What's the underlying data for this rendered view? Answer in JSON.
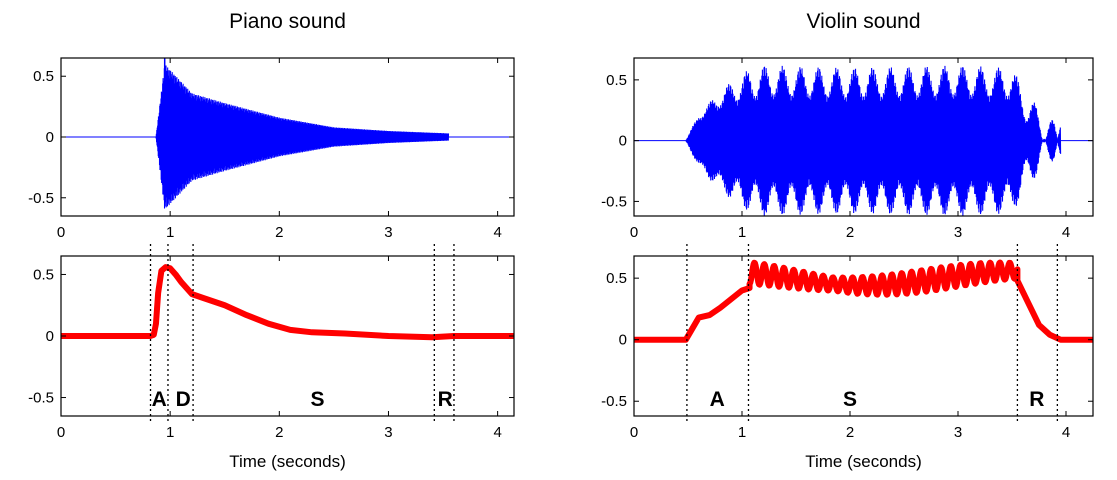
{
  "colors": {
    "waveform": "#0000ff",
    "envelope": "#ff0000",
    "axes": "#000000"
  },
  "chart_data": [
    {
      "id": "piano_wave",
      "type": "line",
      "title": "Piano sound",
      "xlabel": "",
      "ylabel": "",
      "xlim": [
        0,
        4.15
      ],
      "ylim": [
        -0.65,
        0.65
      ],
      "xticks": [
        0,
        1,
        2,
        3,
        4
      ],
      "yticks": [
        0.5,
        0,
        -0.5
      ],
      "grid": false,
      "series": [
        {
          "kind": "waveform",
          "onset": 0.87,
          "offset": 3.55,
          "peak_time": 0.95,
          "peak": 0.6,
          "envelope": {
            "x": [
              0.87,
              0.95,
              1.2,
              1.5,
              2.0,
              2.5,
              3.0,
              3.55
            ],
            "y": [
              0.0,
              0.6,
              0.36,
              0.28,
              0.16,
              0.08,
              0.05,
              0.03
            ]
          }
        }
      ]
    },
    {
      "id": "piano_env",
      "type": "line",
      "title": "",
      "xlabel": "Time (seconds)",
      "ylabel": "",
      "xlim": [
        0,
        4.15
      ],
      "ylim": [
        -0.65,
        0.65
      ],
      "xticks": [
        0,
        1,
        2,
        3,
        4
      ],
      "yticks": [
        0.5,
        0,
        -0.5
      ],
      "grid": false,
      "series": [
        {
          "kind": "envelope",
          "x": [
            0,
            0.82,
            0.85,
            0.87,
            0.89,
            0.92,
            0.96,
            1.0,
            1.05,
            1.1,
            1.15,
            1.2,
            1.3,
            1.5,
            1.7,
            1.9,
            2.1,
            2.3,
            2.6,
            3.0,
            3.4,
            3.6,
            4.15
          ],
          "y": [
            0,
            0,
            0.01,
            0.1,
            0.35,
            0.53,
            0.56,
            0.55,
            0.5,
            0.44,
            0.39,
            0.34,
            0.31,
            0.25,
            0.17,
            0.1,
            0.05,
            0.03,
            0.02,
            0.0,
            -0.01,
            0.0,
            0.0
          ]
        }
      ],
      "markers": [
        0.82,
        0.98,
        1.21,
        3.42,
        3.6
      ],
      "phases": [
        {
          "label": "A",
          "x": 0.9
        },
        {
          "label": "D",
          "x": 1.12
        },
        {
          "label": "S",
          "x": 2.35
        },
        {
          "label": "R",
          "x": 3.52
        }
      ]
    },
    {
      "id": "violin_wave",
      "type": "line",
      "title": "Violin sound",
      "xlabel": "",
      "ylabel": "",
      "xlim": [
        0,
        4.25
      ],
      "ylim": [
        -0.62,
        0.68
      ],
      "xticks": [
        0,
        1,
        2,
        3,
        4
      ],
      "yticks": [
        0.5,
        0,
        -0.5
      ],
      "grid": false,
      "series": [
        {
          "kind": "waveform",
          "onset": 0.48,
          "offset": 3.95,
          "envelope": {
            "x": [
              0.48,
              0.6,
              0.8,
              1.0,
              1.2,
              2.0,
              3.0,
              3.5,
              3.65,
              3.8,
              3.95
            ],
            "y": [
              0.0,
              0.2,
              0.35,
              0.45,
              0.5,
              0.48,
              0.5,
              0.48,
              0.25,
              0.1,
              0.0
            ]
          },
          "ripple_amplitude": 0.12,
          "ripple_frequency": 6
        }
      ]
    },
    {
      "id": "violin_env",
      "type": "line",
      "title": "",
      "xlabel": "Time (seconds)",
      "ylabel": "",
      "xlim": [
        0,
        4.25
      ],
      "ylim": [
        -0.62,
        0.68
      ],
      "xticks": [
        0,
        1,
        2,
        3,
        4
      ],
      "yticks": [
        0.5,
        0,
        -0.5
      ],
      "grid": false,
      "series": [
        {
          "kind": "envelope",
          "x": [
            0,
            0.48,
            0.52,
            0.6,
            0.7,
            0.8,
            0.9,
            1.0,
            1.07
          ],
          "y": [
            0,
            0,
            0.06,
            0.18,
            0.2,
            0.26,
            0.33,
            0.4,
            0.42
          ],
          "sustain": {
            "start": 1.07,
            "end": 3.55,
            "base": 0.5,
            "amplitude": 0.09,
            "frequency": 11
          },
          "release": {
            "x": [
              3.55,
              3.65,
              3.75,
              3.85,
              3.95,
              4.05,
              4.25
            ],
            "y": [
              0.48,
              0.3,
              0.12,
              0.04,
              0.0,
              0.0,
              0.0
            ]
          }
        }
      ],
      "markers": [
        0.49,
        1.06,
        3.55,
        3.92
      ],
      "phases": [
        {
          "label": "A",
          "x": 0.77
        },
        {
          "label": "S",
          "x": 2.0
        },
        {
          "label": "R",
          "x": 3.73
        }
      ]
    }
  ]
}
